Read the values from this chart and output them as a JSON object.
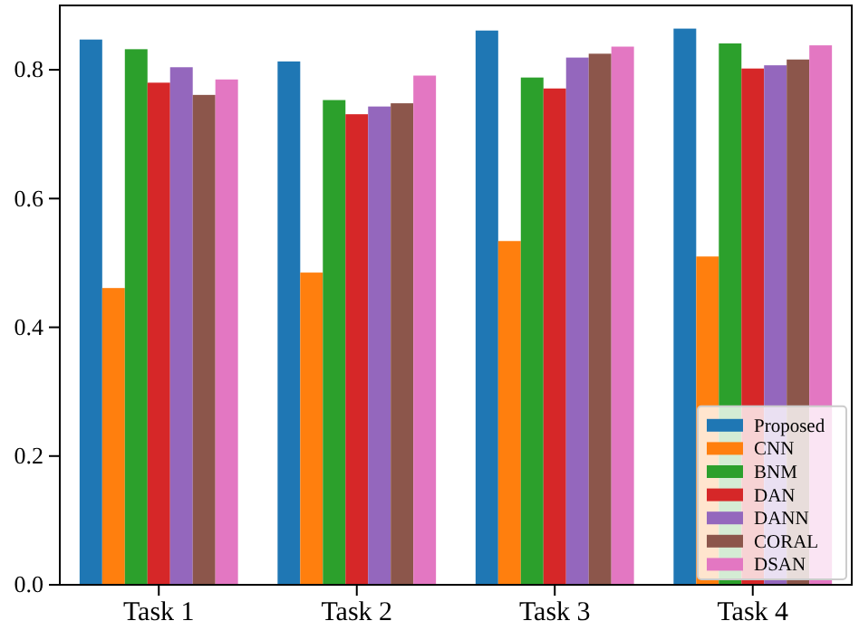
{
  "chart_data": {
    "type": "bar",
    "categories": [
      "Task 1",
      "Task 2",
      "Task 3",
      "Task 4"
    ],
    "series": [
      {
        "name": "Proposed",
        "color": "#1f77b4",
        "values": [
          0.847,
          0.813,
          0.861,
          0.864
        ]
      },
      {
        "name": "CNN",
        "color": "#ff7f0e",
        "values": [
          0.461,
          0.485,
          0.534,
          0.51
        ]
      },
      {
        "name": "BNM",
        "color": "#2ca02c",
        "values": [
          0.832,
          0.753,
          0.788,
          0.841
        ]
      },
      {
        "name": "DAN",
        "color": "#d62728",
        "values": [
          0.78,
          0.731,
          0.771,
          0.802
        ]
      },
      {
        "name": "DANN",
        "color": "#9467bd",
        "values": [
          0.804,
          0.743,
          0.819,
          0.807
        ]
      },
      {
        "name": "CORAL",
        "color": "#8c564b",
        "values": [
          0.761,
          0.748,
          0.825,
          0.816
        ]
      },
      {
        "name": "DSAN",
        "color": "#e377c2",
        "values": [
          0.785,
          0.791,
          0.836,
          0.838
        ]
      }
    ],
    "ylim": [
      0,
      0.9
    ],
    "yticks": [
      {
        "value": 0,
        "label": "0.0"
      },
      0.2,
      0.4,
      0.6,
      0.8
    ],
    "legend": "bottom right"
  }
}
